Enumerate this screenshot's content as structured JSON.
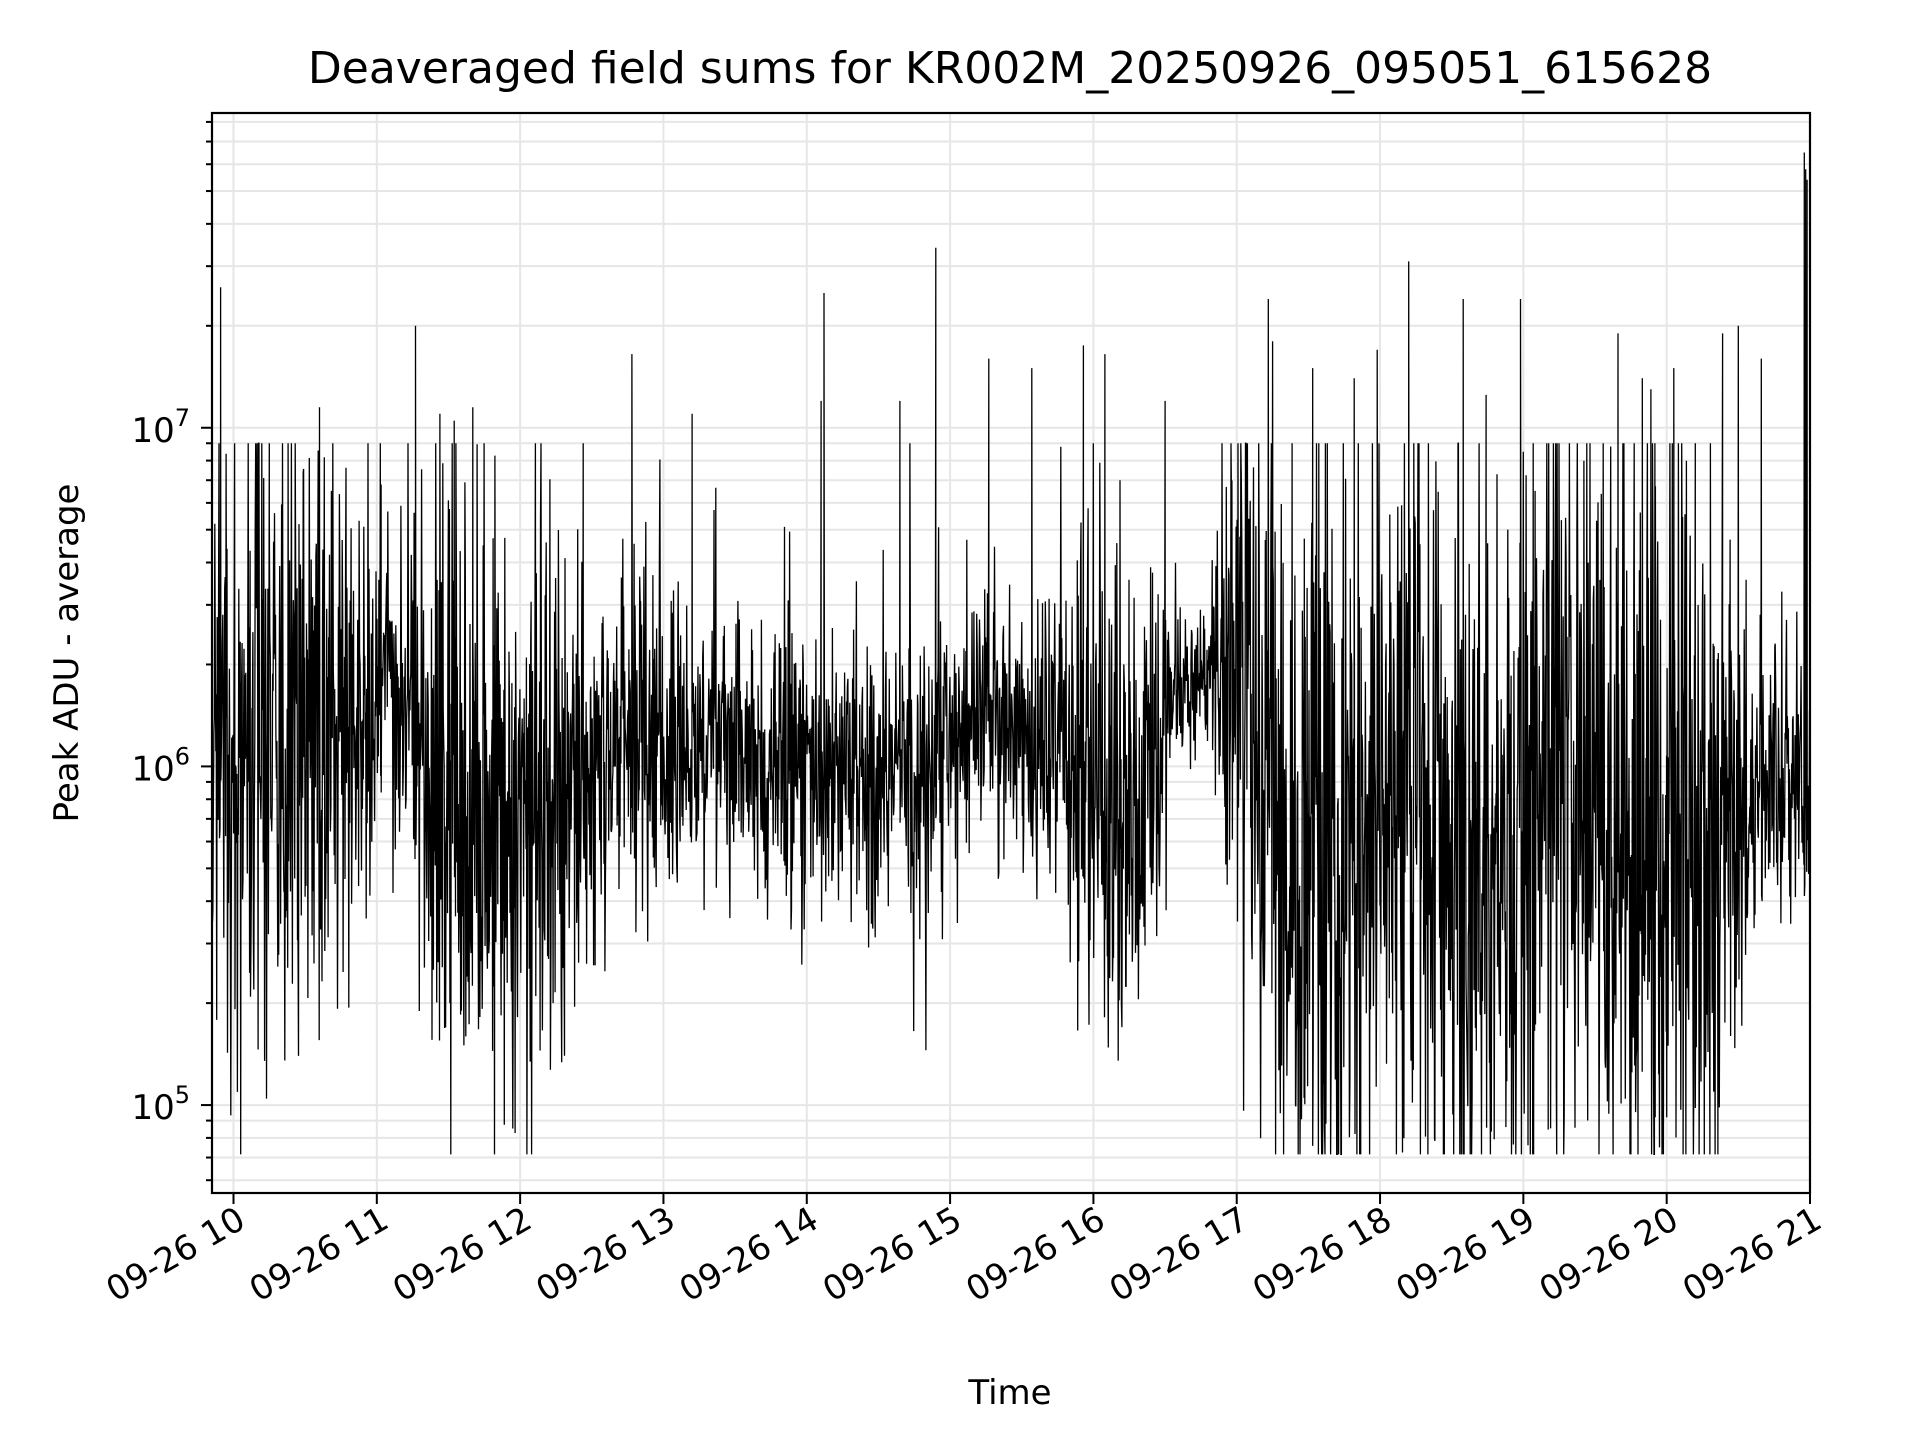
{
  "chart_data": {
    "type": "line",
    "title": "Deaveraged field sums for KR002M_20250926_095051_615628",
    "xlabel": "Time",
    "ylabel": "Peak ADU - average",
    "x_ticks": [
      "09-26 10",
      "09-26 11",
      "09-26 12",
      "09-26 13",
      "09-26 14",
      "09-26 15",
      "09-26 16",
      "09-26 17",
      "09-26 18",
      "09-26 19",
      "09-26 20",
      "09-26 21"
    ],
    "x_tick_hours": [
      10,
      11,
      12,
      13,
      14,
      15,
      16,
      17,
      18,
      19,
      20,
      21
    ],
    "xlim_hours": [
      9.85,
      21.0
    ],
    "y_scale": "log",
    "ylim": [
      55000,
      85000000
    ],
    "y_ticks": [
      {
        "base": "10",
        "exp": "5",
        "value": 100000
      },
      {
        "base": "10",
        "exp": "6",
        "value": 1000000
      },
      {
        "base": "10",
        "exp": "7",
        "value": 10000000
      }
    ],
    "grid": true,
    "line_color": "#000000",
    "grid_color": "#e6e6e6",
    "series": [
      {
        "x_hours": [
          9.84,
          10.0,
          10.2,
          10.4,
          10.6,
          10.8,
          11.0,
          11.2,
          11.4,
          11.6,
          11.8,
          12.0,
          12.2,
          12.4,
          12.6,
          12.8,
          13.0,
          13.2,
          13.4,
          13.6,
          13.8,
          14.0,
          14.2,
          14.4,
          14.6,
          14.8,
          15.0,
          15.2,
          15.4,
          15.6,
          15.8,
          16.0,
          16.2,
          16.4,
          16.6,
          16.8,
          17.0,
          17.2,
          17.4,
          17.6,
          17.8,
          18.0,
          18.2,
          18.4,
          18.6,
          18.8,
          19.0,
          19.2,
          19.4,
          19.6,
          19.8,
          20.0,
          20.2,
          20.4,
          20.6,
          20.8,
          21.0
        ],
        "levels": [
          1300000,
          1300000,
          1400000,
          1100000,
          1100000,
          1200000,
          1800000,
          1600000,
          900000,
          700000,
          650000,
          650000,
          700000,
          750000,
          1000000,
          1300000,
          1100000,
          1000000,
          1300000,
          1150000,
          900000,
          900000,
          950000,
          900000,
          1000000,
          950000,
          1100000,
          1400000,
          1300000,
          1200000,
          1100000,
          800000,
          650000,
          850000,
          1600000,
          1800000,
          2000000,
          700000,
          450000,
          450000,
          550000,
          650000,
          900000,
          700000,
          500000,
          450000,
          550000,
          650000,
          600000,
          550000,
          500000,
          550000,
          550000,
          700000,
          800000,
          900000,
          900000
        ],
        "spread": [
          0.75,
          0.8,
          1.1,
          1.05,
          1.0,
          0.75,
          0.45,
          0.55,
          1.1,
          1.15,
          1.15,
          1.1,
          0.95,
          0.55,
          0.5,
          0.55,
          0.45,
          0.4,
          0.45,
          0.45,
          0.5,
          0.5,
          0.45,
          0.4,
          0.45,
          0.5,
          0.45,
          0.4,
          0.4,
          0.45,
          0.55,
          0.85,
          0.9,
          0.55,
          0.3,
          0.25,
          0.9,
          1.35,
          1.35,
          1.35,
          1.2,
          1.1,
          1.2,
          1.4,
          1.35,
          1.25,
          1.25,
          1.35,
          1.35,
          1.35,
          1.4,
          1.4,
          1.25,
          0.95,
          0.6,
          0.5,
          0.5
        ],
        "spikes": [
          {
            "x": 9.91,
            "y": 26000000
          },
          {
            "x": 10.25,
            "y": 9000000
          },
          {
            "x": 10.6,
            "y": 11500000
          },
          {
            "x": 11.03,
            "y": 6800000
          },
          {
            "x": 11.27,
            "y": 20000000
          },
          {
            "x": 11.44,
            "y": 11000000
          },
          {
            "x": 11.54,
            "y": 10500000
          },
          {
            "x": 11.67,
            "y": 11500000
          },
          {
            "x": 12.44,
            "y": 9000000
          },
          {
            "x": 12.78,
            "y": 16500000
          },
          {
            "x": 13.2,
            "y": 11000000
          },
          {
            "x": 14.1,
            "y": 12000000
          },
          {
            "x": 14.12,
            "y": 25000000
          },
          {
            "x": 14.65,
            "y": 12000000
          },
          {
            "x": 14.9,
            "y": 34000000
          },
          {
            "x": 15.27,
            "y": 16000000
          },
          {
            "x": 15.57,
            "y": 15000000
          },
          {
            "x": 15.93,
            "y": 17500000
          },
          {
            "x": 16.08,
            "y": 16500000
          },
          {
            "x": 16.5,
            "y": 12000000
          },
          {
            "x": 17.22,
            "y": 24000000
          },
          {
            "x": 17.25,
            "y": 18000000
          },
          {
            "x": 17.53,
            "y": 15000000
          },
          {
            "x": 17.82,
            "y": 14000000
          },
          {
            "x": 17.98,
            "y": 17000000
          },
          {
            "x": 18.2,
            "y": 31000000
          },
          {
            "x": 18.58,
            "y": 24000000
          },
          {
            "x": 18.74,
            "y": 12500000
          },
          {
            "x": 18.98,
            "y": 24000000
          },
          {
            "x": 19.66,
            "y": 19000000
          },
          {
            "x": 19.83,
            "y": 14000000
          },
          {
            "x": 19.89,
            "y": 13000000
          },
          {
            "x": 20.05,
            "y": 15000000
          },
          {
            "x": 20.39,
            "y": 19000000
          },
          {
            "x": 20.5,
            "y": 20000000
          },
          {
            "x": 20.66,
            "y": 16000000
          },
          {
            "x": 20.96,
            "y": 65000000
          },
          {
            "x": 20.97,
            "y": 58000000
          },
          {
            "x": 20.98,
            "y": 54000000
          }
        ],
        "dips": [
          {
            "x": 10.23,
            "y": 220000
          },
          {
            "x": 11.51,
            "y": 200000
          },
          {
            "x": 11.59,
            "y": 190000
          },
          {
            "x": 12.23,
            "y": 200000
          },
          {
            "x": 12.38,
            "y": 195000
          },
          {
            "x": 17.41,
            "y": 100000
          },
          {
            "x": 17.47,
            "y": 105000
          },
          {
            "x": 18.84,
            "y": 160000
          },
          {
            "x": 19.23,
            "y": 115000
          },
          {
            "x": 19.92,
            "y": 92000
          },
          {
            "x": 19.95,
            "y": 75000
          },
          {
            "x": 20.0,
            "y": 92000
          },
          {
            "x": 20.2,
            "y": 98000
          }
        ]
      }
    ]
  }
}
